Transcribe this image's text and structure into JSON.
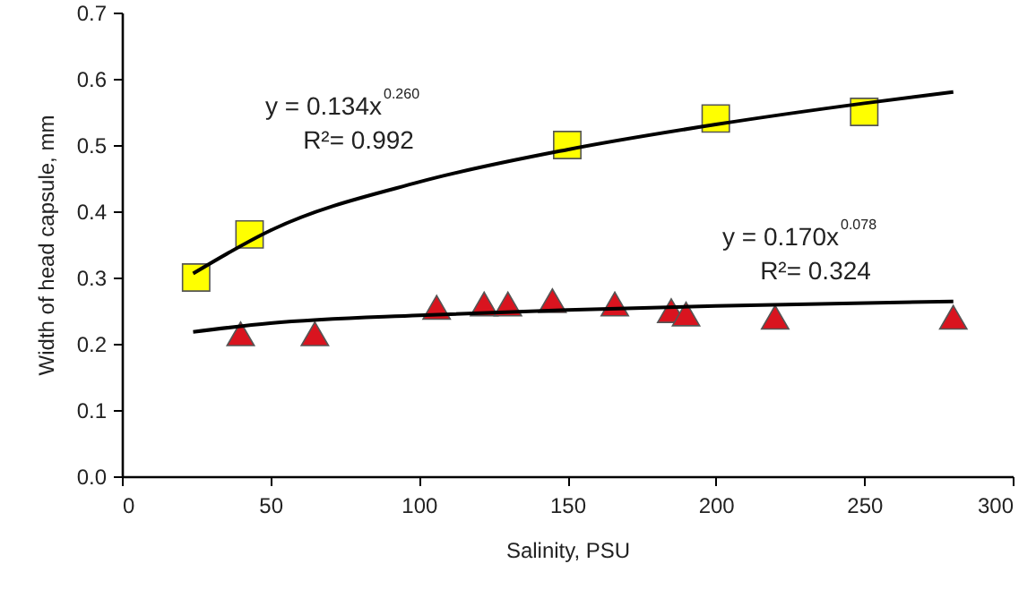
{
  "chart_data": {
    "type": "scatter",
    "xlabel": "Salinity, PSU",
    "ylabel": "Width of head capsule, mm",
    "xlim": [
      0,
      300
    ],
    "xticks": [
      0,
      50,
      100,
      150,
      200,
      250,
      300
    ],
    "ylim": [
      0,
      0.7
    ],
    "yticks": [
      {
        "value": 0,
        "label": "0.0"
      },
      0.1,
      0.2,
      0.3,
      0.4,
      0.5,
      0.6,
      0.7
    ],
    "grid": false,
    "series": [
      {
        "marker": "square",
        "color": "#ffff00",
        "x": [
          25,
          43,
          150,
          200,
          250
        ],
        "values": [
          0.3,
          0.365,
          0.5,
          0.54,
          0.55
        ]
      },
      {
        "marker": "triangle",
        "color": "#d9141f",
        "x": [
          40,
          65,
          106,
          122,
          130,
          145,
          166,
          185,
          190,
          220,
          280
        ],
        "values": [
          0.215,
          0.215,
          0.255,
          0.26,
          0.26,
          0.265,
          0.26,
          0.25,
          0.245,
          0.24,
          0.24
        ]
      },
      {
        "type": "line",
        "color": "#000000",
        "x": [
          24,
          50,
          100,
          150,
          200,
          250,
          280
        ],
        "values": [
          0.306,
          0.371,
          0.444,
          0.493,
          0.531,
          0.563,
          0.58
        ]
      },
      {
        "type": "line",
        "color": "#000000",
        "x": [
          24,
          50,
          100,
          150,
          200,
          280
        ],
        "values": [
          0.218,
          0.231,
          0.243,
          0.251,
          0.257,
          0.264
        ]
      }
    ],
    "annotations": [
      "y = 0.134x$^{0.260}$",
      "R²= 0.992",
      "y = 0.170x$^{0.078}$",
      "R²= 0.324"
    ]
  }
}
